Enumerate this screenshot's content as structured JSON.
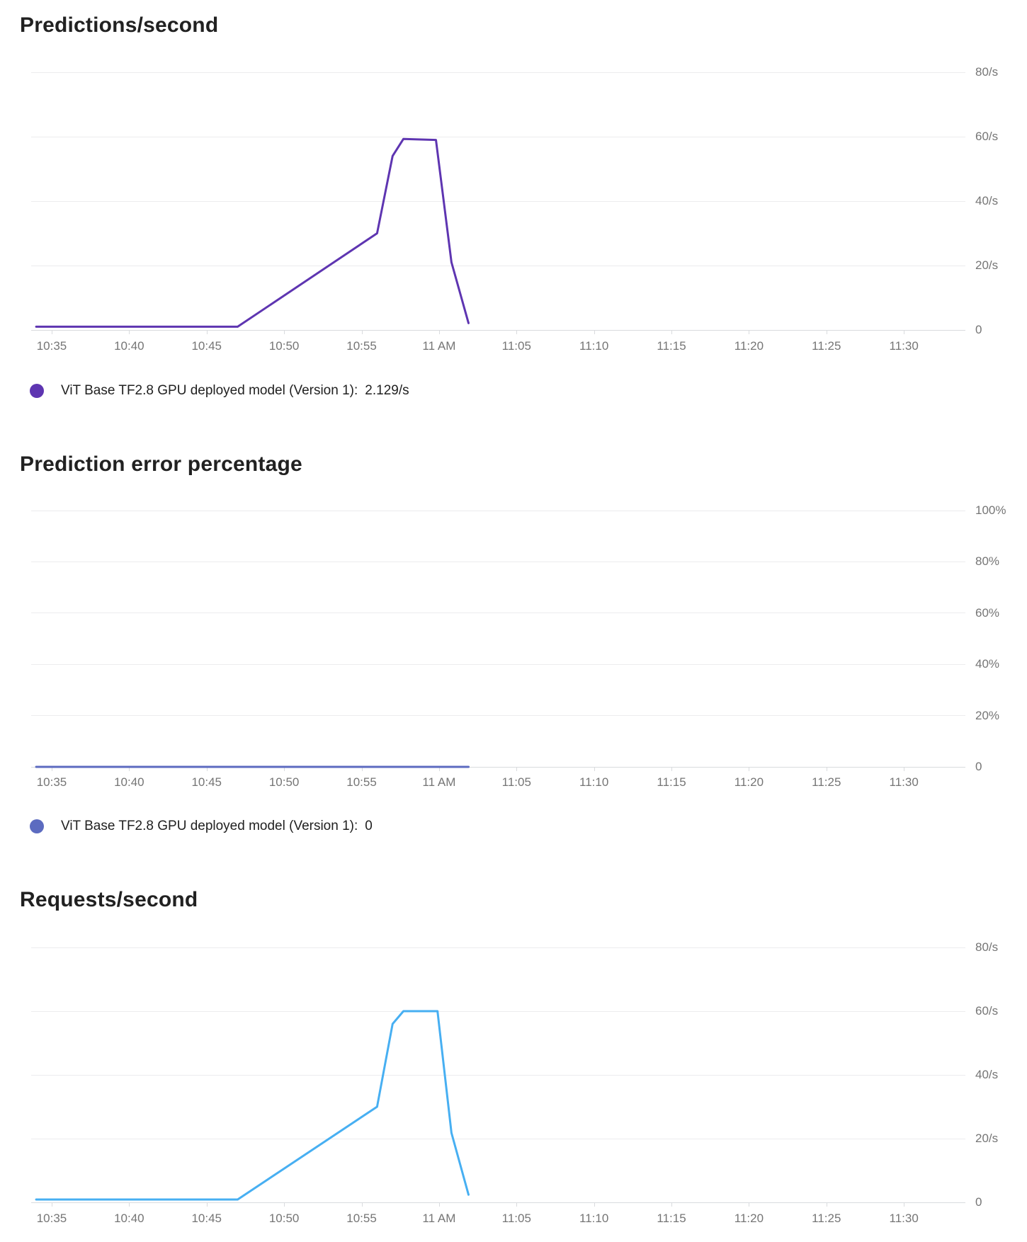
{
  "chart_data": [
    {
      "type": "line",
      "title": "Predictions/second",
      "x_range": [
        "10:34",
        "11:02"
      ],
      "x_tick_labels": [
        "10:35",
        "10:40",
        "10:45",
        "10:50",
        "10:55",
        "11 AM",
        "11:05",
        "11:10",
        "11:15",
        "11:20",
        "11:25",
        "11:30"
      ],
      "x_tick_minutes": [
        35,
        40,
        45,
        50,
        55,
        60,
        65,
        70,
        75,
        80,
        85,
        90
      ],
      "y_tick_labels": [
        "0",
        "20/s",
        "40/s",
        "60/s",
        "80/s"
      ],
      "y_tick_values": [
        0,
        20,
        40,
        60,
        80
      ],
      "ylim": [
        0,
        89
      ],
      "grid": true,
      "legend_position": "bottom",
      "series": [
        {
          "name": "ViT Base TF2.8 GPU deployed model (Version 1)",
          "color": "#5e35b1",
          "x_minutes": [
            34,
            47,
            56,
            57,
            57.7,
            59.8,
            60.8,
            61.9
          ],
          "values": [
            1,
            1,
            30,
            54,
            59.3,
            59,
            21,
            2.129
          ]
        }
      ],
      "legend": {
        "label": "ViT Base TF2.8 GPU deployed model (Version 1):",
        "value": "2.129/s",
        "color": "#5e35b1"
      }
    },
    {
      "type": "line",
      "title": "Prediction error percentage",
      "x_range": [
        "10:34",
        "11:02"
      ],
      "x_tick_labels": [
        "10:35",
        "10:40",
        "10:45",
        "10:50",
        "10:55",
        "11 AM",
        "11:05",
        "11:10",
        "11:15",
        "11:20",
        "11:25",
        "11:30"
      ],
      "x_tick_minutes": [
        35,
        40,
        45,
        50,
        55,
        60,
        65,
        70,
        75,
        80,
        85,
        90
      ],
      "y_tick_labels": [
        "0",
        "20%",
        "40%",
        "60%",
        "80%",
        "100%"
      ],
      "y_tick_values": [
        0,
        20,
        40,
        60,
        80,
        100
      ],
      "ylim": [
        0,
        107
      ],
      "grid": true,
      "legend_position": "bottom",
      "series": [
        {
          "name": "ViT Base TF2.8 GPU deployed model (Version 1)",
          "color": "#5c6bc0",
          "x_minutes": [
            34,
            61.9
          ],
          "values": [
            0,
            0
          ]
        }
      ],
      "legend": {
        "label": "ViT Base TF2.8 GPU deployed model (Version 1):",
        "value": "0",
        "color": "#5c6bc0"
      }
    },
    {
      "type": "line",
      "title": "Requests/second",
      "x_range": [
        "10:34",
        "11:02"
      ],
      "x_tick_labels": [
        "10:35",
        "10:40",
        "10:45",
        "10:50",
        "10:55",
        "11 AM",
        "11:05",
        "11:10",
        "11:15",
        "11:20",
        "11:25",
        "11:30"
      ],
      "x_tick_minutes": [
        35,
        40,
        45,
        50,
        55,
        60,
        65,
        70,
        75,
        80,
        85,
        90
      ],
      "y_tick_labels": [
        "0",
        "20/s",
        "40/s",
        "60/s",
        "80/s"
      ],
      "y_tick_values": [
        0,
        20,
        40,
        60,
        80
      ],
      "ylim": [
        0,
        89
      ],
      "grid": true,
      "series": [
        {
          "name": "ViT Base TF2.8 GPU deployed model (Version 1)",
          "color": "#47aff2",
          "x_minutes": [
            34,
            47,
            56,
            57,
            57.7,
            59.9,
            60.8,
            61.9
          ],
          "values": [
            0.9,
            0.9,
            30,
            56,
            60,
            60,
            21.8,
            2.4
          ]
        }
      ]
    }
  ]
}
